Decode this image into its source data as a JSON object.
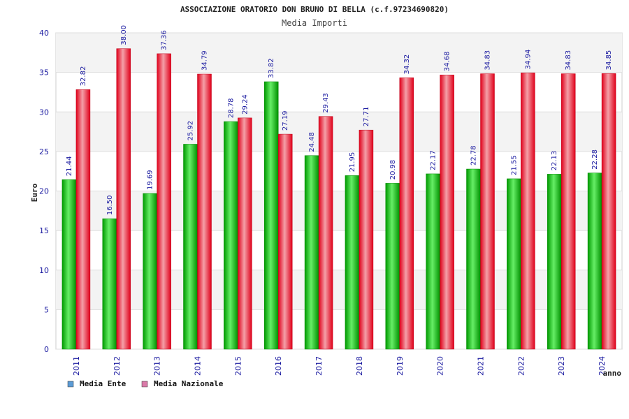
{
  "chart_data": {
    "type": "bar",
    "title": "ASSOCIAZIONE ORATORIO DON BRUNO DI BELLA (c.f.97234690820)",
    "subtitle": "Media Importi",
    "ylabel": "Euro",
    "xlabel": "anno",
    "ylim": [
      0,
      40
    ],
    "yticks": [
      0,
      5,
      10,
      15,
      20,
      25,
      30,
      35,
      40
    ],
    "grid": true,
    "legend_position": "bottom-left",
    "categories": [
      "2011",
      "2012",
      "2013",
      "2014",
      "2015",
      "2016",
      "2017",
      "2018",
      "2019",
      "2020",
      "2021",
      "2022",
      "2023",
      "2024"
    ],
    "series": [
      {
        "name": "Media Ente",
        "color": "#00b000",
        "legend_color": "#5b9bd5",
        "values": [
          21.44,
          16.5,
          19.69,
          25.92,
          28.78,
          33.82,
          24.48,
          21.95,
          20.98,
          22.17,
          22.78,
          21.55,
          22.13,
          22.28
        ],
        "labels": [
          "21.44",
          "16.50",
          "19.69",
          "25.92",
          "28.78",
          "33.82",
          "24.48",
          "21.95",
          "20.98",
          "22.17",
          "22.78",
          "21.55",
          "22.13",
          "22.28"
        ]
      },
      {
        "name": "Media Nazionale",
        "color": "#e8001c",
        "legend_color": "#d97aa8",
        "values": [
          32.82,
          38.0,
          37.36,
          34.79,
          29.24,
          27.19,
          29.43,
          27.71,
          34.32,
          34.68,
          34.83,
          34.94,
          34.83,
          34.85
        ],
        "labels": [
          "32.82",
          "38.00",
          "37.36",
          "34.79",
          "29.24",
          "27.19",
          "29.43",
          "27.71",
          "34.32",
          "34.68",
          "34.83",
          "34.94",
          "34.83",
          "34.85"
        ]
      }
    ]
  }
}
